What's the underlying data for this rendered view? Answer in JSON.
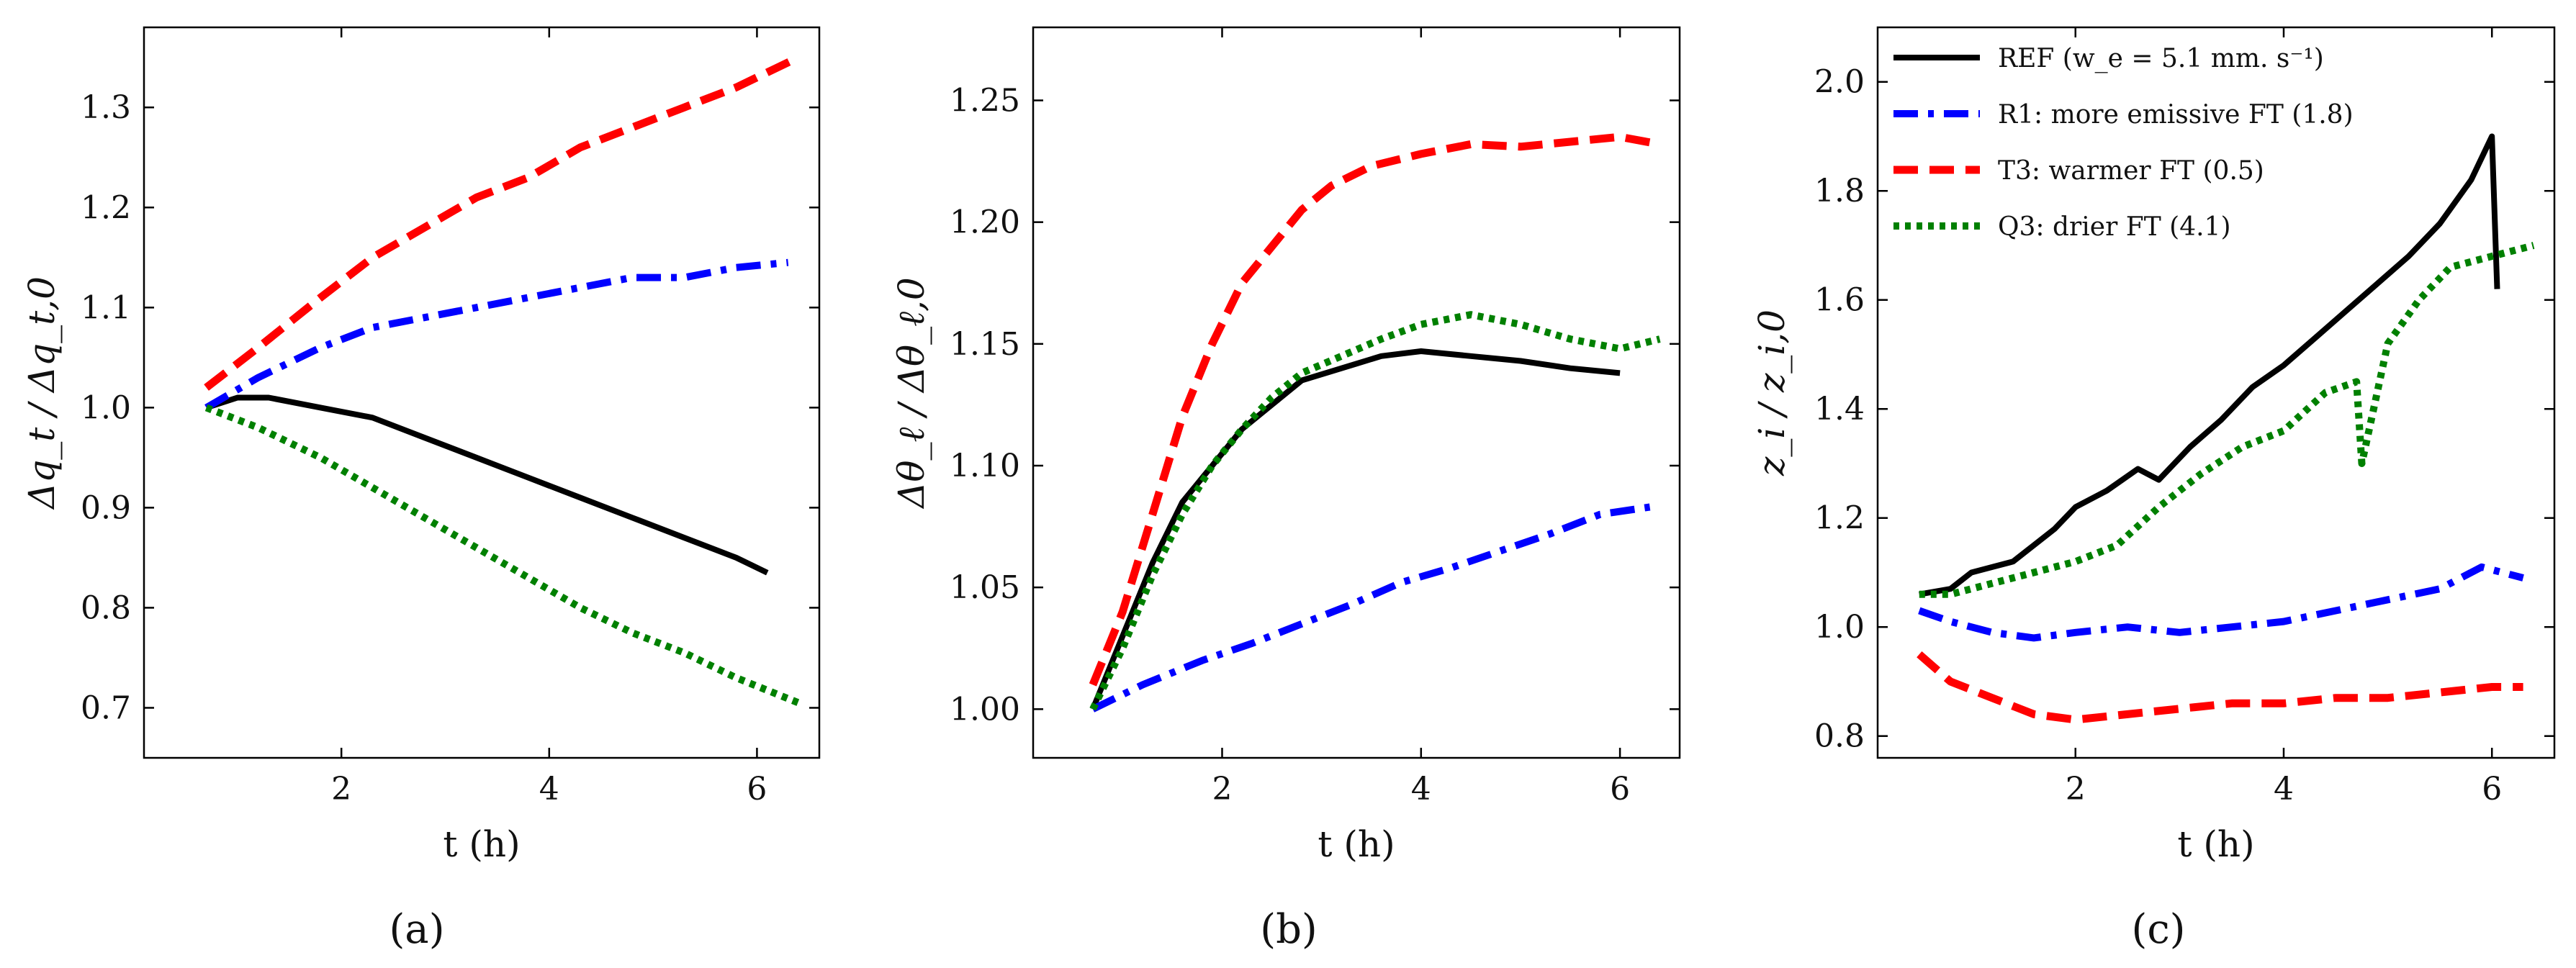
{
  "chart_data": [
    {
      "type": "line",
      "panel_label": "(a)",
      "xlabel": "t (h)",
      "ylabel": "Δq_t / Δq_t,0",
      "xlim": [
        0.1,
        6.6
      ],
      "ylim": [
        0.65,
        1.38
      ],
      "xticks": [
        2,
        4,
        6
      ],
      "yticks": [
        0.7,
        0.8,
        0.9,
        1.0,
        1.1,
        1.2,
        1.3
      ],
      "ytick_labels": [
        "0.7",
        "0.8",
        "0.9",
        "1.0",
        "1.1",
        "1.2",
        "1.3"
      ],
      "series": [
        {
          "name": "REF",
          "color": "#000000",
          "style": "solid",
          "x": [
            0.7,
            1.0,
            1.3,
            1.8,
            2.3,
            2.8,
            3.3,
            3.8,
            4.3,
            4.8,
            5.3,
            5.8,
            6.1
          ],
          "y": [
            1.0,
            1.01,
            1.01,
            1.0,
            0.99,
            0.97,
            0.95,
            0.93,
            0.91,
            0.89,
            0.87,
            0.85,
            0.835
          ]
        },
        {
          "name": "R1",
          "color": "#0000ff",
          "style": "dashdot",
          "x": [
            0.7,
            1.2,
            1.8,
            2.3,
            2.8,
            3.3,
            3.8,
            4.3,
            4.8,
            5.3,
            5.8,
            6.3
          ],
          "y": [
            1.0,
            1.03,
            1.06,
            1.08,
            1.09,
            1.1,
            1.11,
            1.12,
            1.13,
            1.13,
            1.14,
            1.145
          ]
        },
        {
          "name": "T3",
          "color": "#ff0000",
          "style": "dashed",
          "x": [
            0.7,
            1.2,
            1.8,
            2.3,
            2.8,
            3.3,
            3.8,
            4.3,
            4.8,
            5.3,
            5.8,
            6.4
          ],
          "y": [
            1.02,
            1.06,
            1.11,
            1.15,
            1.18,
            1.21,
            1.23,
            1.26,
            1.28,
            1.3,
            1.32,
            1.35
          ]
        },
        {
          "name": "Q3",
          "color": "#008000",
          "style": "dotted",
          "x": [
            0.7,
            1.2,
            1.8,
            2.3,
            2.8,
            3.3,
            3.8,
            4.3,
            4.8,
            5.3,
            5.8,
            6.4
          ],
          "y": [
            1.0,
            0.98,
            0.95,
            0.92,
            0.89,
            0.86,
            0.83,
            0.8,
            0.775,
            0.755,
            0.73,
            0.705
          ]
        }
      ]
    },
    {
      "type": "line",
      "panel_label": "(b)",
      "xlabel": "t (h)",
      "ylabel": "Δθ_ℓ / Δθ_ℓ,0",
      "xlim": [
        0.1,
        6.6
      ],
      "ylim": [
        0.98,
        1.28
      ],
      "xticks": [
        2,
        4,
        6
      ],
      "yticks": [
        1.0,
        1.05,
        1.1,
        1.15,
        1.2,
        1.25
      ],
      "ytick_labels": [
        "1.00",
        "1.05",
        "1.10",
        "1.15",
        "1.20",
        "1.25"
      ],
      "series": [
        {
          "name": "REF",
          "color": "#000000",
          "style": "solid",
          "x": [
            0.7,
            1.0,
            1.3,
            1.6,
            1.9,
            2.2,
            2.5,
            2.8,
            3.2,
            3.6,
            4.0,
            4.5,
            5.0,
            5.5,
            6.0
          ],
          "y": [
            1.0,
            1.03,
            1.06,
            1.085,
            1.1,
            1.115,
            1.125,
            1.135,
            1.14,
            1.145,
            1.147,
            1.145,
            1.143,
            1.14,
            1.138
          ]
        },
        {
          "name": "R1",
          "color": "#0000ff",
          "style": "dashdot",
          "x": [
            0.7,
            1.2,
            1.8,
            2.3,
            2.8,
            3.3,
            3.8,
            4.3,
            4.8,
            5.3,
            5.8,
            6.3
          ],
          "y": [
            1.0,
            1.01,
            1.02,
            1.027,
            1.035,
            1.043,
            1.052,
            1.058,
            1.065,
            1.072,
            1.08,
            1.083
          ]
        },
        {
          "name": "T3",
          "color": "#ff0000",
          "style": "dashed",
          "x": [
            0.7,
            1.0,
            1.3,
            1.6,
            1.9,
            2.2,
            2.5,
            2.8,
            3.1,
            3.5,
            4.0,
            4.5,
            5.0,
            5.5,
            6.0,
            6.4
          ],
          "y": [
            1.01,
            1.04,
            1.08,
            1.12,
            1.15,
            1.175,
            1.19,
            1.205,
            1.215,
            1.223,
            1.228,
            1.232,
            1.231,
            1.233,
            1.235,
            1.232
          ]
        },
        {
          "name": "Q3",
          "color": "#008000",
          "style": "dotted",
          "x": [
            0.7,
            1.0,
            1.3,
            1.6,
            1.9,
            2.2,
            2.5,
            2.8,
            3.2,
            3.6,
            4.0,
            4.5,
            5.0,
            5.5,
            6.0,
            6.4
          ],
          "y": [
            1.0,
            1.025,
            1.055,
            1.08,
            1.1,
            1.115,
            1.128,
            1.138,
            1.145,
            1.152,
            1.158,
            1.162,
            1.158,
            1.152,
            1.148,
            1.152
          ]
        }
      ]
    },
    {
      "type": "line",
      "panel_label": "(c)",
      "xlabel": "t (h)",
      "ylabel": "z_i / z_i,0",
      "xlim": [
        0.1,
        6.6
      ],
      "ylim": [
        0.76,
        2.1
      ],
      "xticks": [
        2,
        4,
        6
      ],
      "yticks": [
        0.8,
        1.0,
        1.2,
        1.4,
        1.6,
        1.8,
        2.0
      ],
      "ytick_labels": [
        "0.8",
        "1.0",
        "1.2",
        "1.4",
        "1.6",
        "1.8",
        "2.0"
      ],
      "legend": {
        "position": "top-left",
        "entries": [
          {
            "label": "REF (w_e = 5.1 mm. s⁻¹)",
            "color": "#000000",
            "style": "solid"
          },
          {
            "label": "R1: more emissive FT (1.8)",
            "color": "#0000ff",
            "style": "dashdot"
          },
          {
            "label": "T3: warmer FT (0.5)",
            "color": "#ff0000",
            "style": "dashed"
          },
          {
            "label": "Q3: drier FT (4.1)",
            "color": "#008000",
            "style": "dotted"
          }
        ]
      },
      "series": [
        {
          "name": "REF",
          "color": "#000000",
          "style": "solid",
          "x": [
            0.5,
            0.8,
            1.0,
            1.2,
            1.4,
            1.6,
            1.8,
            2.0,
            2.3,
            2.6,
            2.8,
            3.1,
            3.4,
            3.7,
            4.0,
            4.3,
            4.6,
            4.9,
            5.2,
            5.5,
            5.8,
            6.0,
            6.05
          ],
          "y": [
            1.06,
            1.07,
            1.1,
            1.11,
            1.12,
            1.15,
            1.18,
            1.22,
            1.25,
            1.29,
            1.27,
            1.33,
            1.38,
            1.44,
            1.48,
            1.53,
            1.58,
            1.63,
            1.68,
            1.74,
            1.82,
            1.9,
            1.62
          ]
        },
        {
          "name": "R1",
          "color": "#0000ff",
          "style": "dashdot",
          "x": [
            0.5,
            0.8,
            1.2,
            1.6,
            2.0,
            2.5,
            3.0,
            3.5,
            4.0,
            4.5,
            5.0,
            5.5,
            5.9,
            6.3
          ],
          "y": [
            1.03,
            1.01,
            0.99,
            0.98,
            0.99,
            1.0,
            0.99,
            1.0,
            1.01,
            1.03,
            1.05,
            1.07,
            1.11,
            1.09
          ]
        },
        {
          "name": "T3",
          "color": "#ff0000",
          "style": "dashed",
          "x": [
            0.5,
            0.8,
            1.2,
            1.6,
            2.0,
            2.5,
            3.0,
            3.5,
            4.0,
            4.5,
            5.0,
            5.5,
            6.0,
            6.3
          ],
          "y": [
            0.95,
            0.9,
            0.87,
            0.84,
            0.83,
            0.84,
            0.85,
            0.86,
            0.86,
            0.87,
            0.87,
            0.88,
            0.89,
            0.89
          ]
        },
        {
          "name": "Q3",
          "color": "#008000",
          "style": "dotted",
          "x": [
            0.5,
            0.8,
            1.2,
            1.6,
            2.0,
            2.4,
            2.8,
            3.2,
            3.6,
            4.0,
            4.4,
            4.7,
            4.75,
            5.0,
            5.3,
            5.6,
            6.0,
            6.4
          ],
          "y": [
            1.06,
            1.06,
            1.08,
            1.1,
            1.12,
            1.15,
            1.22,
            1.28,
            1.33,
            1.36,
            1.43,
            1.45,
            1.3,
            1.52,
            1.6,
            1.66,
            1.68,
            1.7
          ]
        }
      ]
    }
  ]
}
